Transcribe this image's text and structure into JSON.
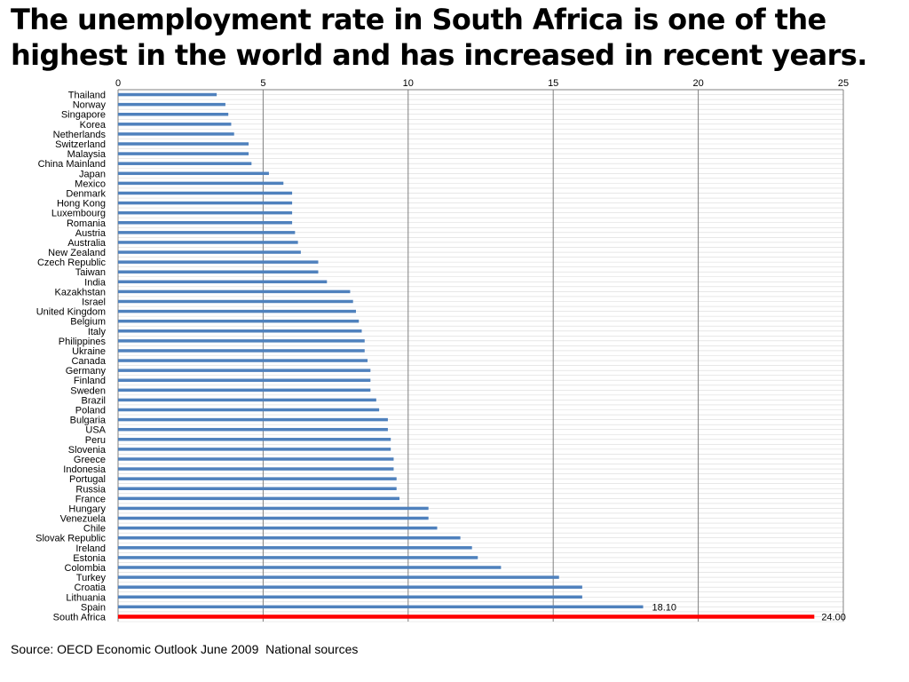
{
  "title": {
    "line1": "The unemployment rate in South Africa is one of the",
    "line2": "highest in the world and has increased in recent years."
  },
  "source": "Source: OECD Economic Outlook June 2009  National sources",
  "colors": {
    "bar": "#4f81bd",
    "highlight": "#ff0000",
    "grid_major": "#808080",
    "grid_minor": "#d9d9d9"
  },
  "chart_data": {
    "type": "bar",
    "orientation": "horizontal",
    "title": "",
    "xlabel": "",
    "ylabel": "",
    "xlim": [
      0,
      25
    ],
    "x_ticks": [
      0,
      5,
      10,
      15,
      20,
      25
    ],
    "x_axis_position": "top",
    "grid": true,
    "legend": "none",
    "categories": [
      "Thailand",
      "Norway",
      "Singapore",
      "Korea",
      "Netherlands",
      "Switzerland",
      "Malaysia",
      "China Mainland",
      "Japan",
      "Mexico",
      "Denmark",
      "Hong Kong",
      "Luxembourg",
      "Romania",
      "Austria",
      "Australia",
      "New Zealand",
      "Czech Republic",
      "Taiwan",
      "India",
      "Kazakhstan",
      "Israel",
      "United Kingdom",
      "Belgium",
      "Italy",
      "Philippines",
      "Ukraine",
      "Canada",
      "Germany",
      "Finland",
      "Sweden",
      "Brazil",
      "Poland",
      "Bulgaria",
      "USA",
      "Peru",
      "Slovenia",
      "Greece",
      "Indonesia",
      "Portugal",
      "Russia",
      "France",
      "Hungary",
      "Venezuela",
      "Chile",
      "Slovak Republic",
      "Ireland",
      "Estonia",
      "Colombia",
      "Turkey",
      "Croatia",
      "Lithuania",
      "Spain",
      "South Africa"
    ],
    "values": [
      3.4,
      3.7,
      3.8,
      3.9,
      4.0,
      4.5,
      4.5,
      4.6,
      5.2,
      5.7,
      6.0,
      6.0,
      6.0,
      6.0,
      6.1,
      6.2,
      6.3,
      6.9,
      6.9,
      7.2,
      8.0,
      8.1,
      8.2,
      8.3,
      8.4,
      8.5,
      8.5,
      8.6,
      8.7,
      8.7,
      8.7,
      8.9,
      9.0,
      9.3,
      9.3,
      9.4,
      9.4,
      9.5,
      9.5,
      9.6,
      9.6,
      9.7,
      10.7,
      10.7,
      11.0,
      11.8,
      12.2,
      12.4,
      13.2,
      15.2,
      16.0,
      16.0,
      18.1,
      24.0
    ],
    "data_labels": [
      {
        "category": "Spain",
        "text": "18.10"
      },
      {
        "category": "South Africa",
        "text": "24.00"
      }
    ],
    "highlight_category": "South Africa"
  }
}
